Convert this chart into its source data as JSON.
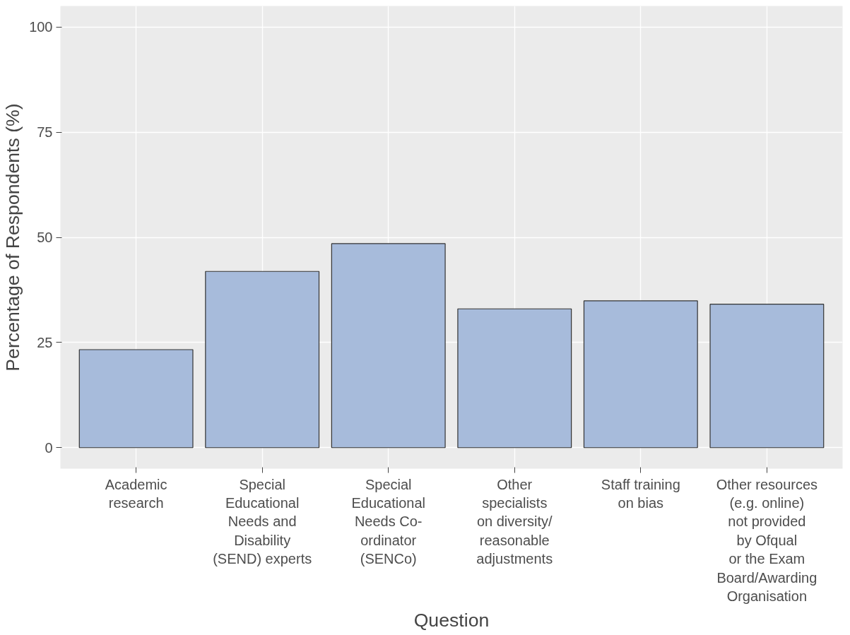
{
  "chart_data": {
    "type": "bar",
    "xlabel": "Question",
    "ylabel": "Percentage of Respondents (%)",
    "categories": [
      "Academic\nresearch",
      "Special\nEducational\nNeeds and\nDisability\n(SEND) experts",
      "Special\nEducational\nNeeds Co-\nordinator\n(SENCo)",
      "Other\nspecialists\non diversity/\nreasonable\nadjustments",
      "Staff training\non bias",
      "Other resources\n(e.g. online)\nnot provided\nby Ofqual\nor the Exam\nBoard/Awarding\nOrganisation"
    ],
    "values": [
      23.3,
      41.9,
      48.5,
      33.0,
      34.9,
      34.1
    ],
    "color": "#a7bbdb",
    "ylim": [
      -5,
      105
    ],
    "yticks": [
      0,
      25,
      50,
      75,
      100
    ],
    "grid": true
  }
}
